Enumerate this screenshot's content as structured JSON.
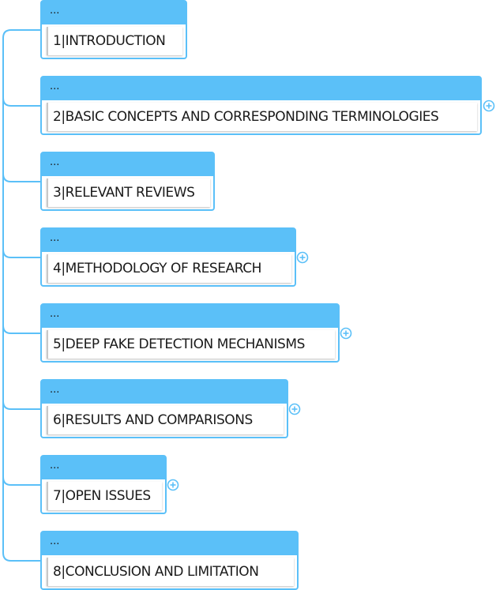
{
  "colors": {
    "accent": "#5bc0f8",
    "connector": "#5bc0f8"
  },
  "nodes": [
    {
      "header": "...",
      "title": "1|INTRODUCTION",
      "collapsed": false
    },
    {
      "header": "...",
      "title": "2|BASIC CONCEPTS AND CORRESPONDING TERMINOLOGIES",
      "collapsed": true
    },
    {
      "header": "...",
      "title": "3|RELEVANT REVIEWS",
      "collapsed": false
    },
    {
      "header": "...",
      "title": "4|METHODOLOGY OF RESEARCH",
      "collapsed": true
    },
    {
      "header": "...",
      "title": "5|DEEP FAKE DETECTION MECHANISMS",
      "collapsed": true
    },
    {
      "header": "...",
      "title": "6|RESULTS AND COMPARISONS",
      "collapsed": true
    },
    {
      "header": "...",
      "title": "7|OPEN ISSUES",
      "collapsed": true
    },
    {
      "header": "...",
      "title": "8|CONCLUSION AND LIMITATION",
      "collapsed": false
    }
  ],
  "expand_icon": "circle-plus-icon"
}
